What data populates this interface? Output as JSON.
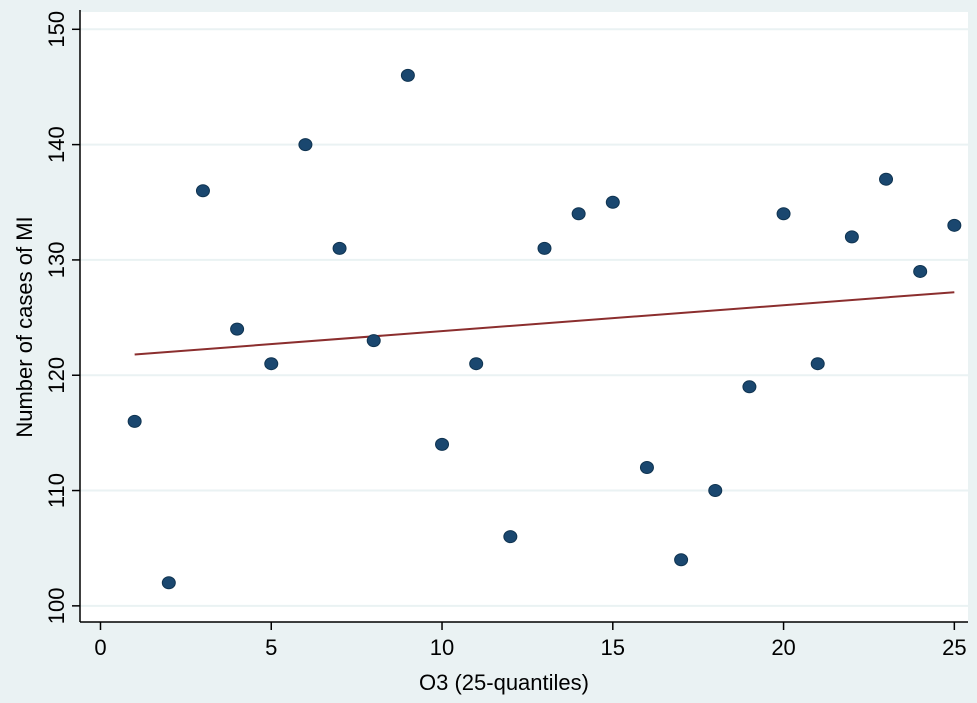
{
  "chart_data": {
    "type": "scatter",
    "title": "",
    "xlabel": "O3  (25-quantiles)",
    "ylabel": "Number of cases of MI",
    "xlim": [
      -0.6,
      25.4
    ],
    "ylim": [
      98.6,
      151.5
    ],
    "xticks": [
      0,
      5,
      10,
      15,
      20,
      25
    ],
    "yticks": [
      100,
      110,
      120,
      130,
      140,
      150
    ],
    "grid": true,
    "series": [
      {
        "kind": "points",
        "color": "#1a476f",
        "x": [
          1,
          2,
          3,
          4,
          5,
          6,
          7,
          8,
          9,
          10,
          11,
          12,
          13,
          14,
          15,
          16,
          17,
          18,
          19,
          20,
          21,
          22,
          23,
          24,
          25
        ],
        "y": [
          116,
          102,
          136,
          124,
          121,
          140,
          131,
          123,
          146,
          114,
          121,
          106,
          131,
          134,
          135,
          112,
          104,
          110,
          119,
          134,
          121,
          132,
          137,
          129,
          133
        ]
      },
      {
        "kind": "fitted-line",
        "color": "#8b2e2e",
        "x": [
          1,
          25
        ],
        "y": [
          121.8,
          127.2
        ]
      }
    ],
    "background": "#eaf2f3",
    "plot_background": "#ffffff",
    "grid_color": "#eaf2f3"
  }
}
